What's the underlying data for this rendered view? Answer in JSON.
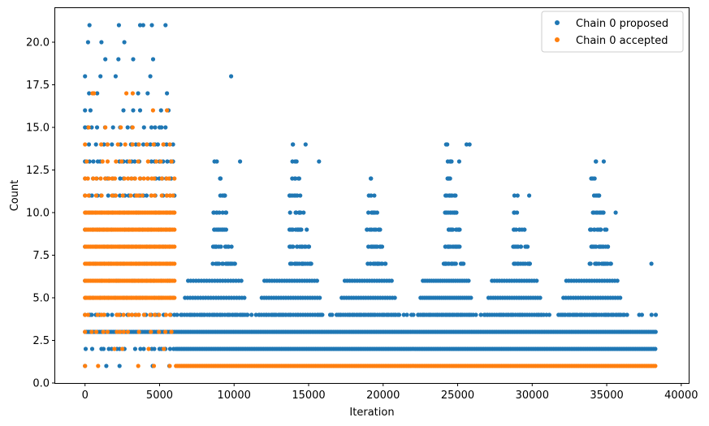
{
  "chart_data": {
    "type": "scatter",
    "title": "",
    "xlabel": "Iteration",
    "ylabel": "Count",
    "xlim": [
      -2000,
      40500
    ],
    "ylim": [
      0,
      22
    ],
    "xticks": [
      0,
      5000,
      10000,
      15000,
      20000,
      25000,
      30000,
      35000,
      40000
    ],
    "xtick_labels": [
      "0",
      "5000",
      "10000",
      "15000",
      "20000",
      "25000",
      "30000",
      "35000",
      "40000"
    ],
    "yticks": [
      0,
      2.5,
      5,
      7.5,
      10,
      12.5,
      15,
      17.5,
      20
    ],
    "ytick_labels": [
      "0.0",
      "2.5",
      "5.0",
      "7.5",
      "10.0",
      "12.5",
      "15.0",
      "17.5",
      "20.0"
    ],
    "grid": false,
    "legend_position": "top-right",
    "series": [
      {
        "name": "Chain 0 proposed",
        "color": "#1f77b4",
        "bands": [
          {
            "y": 1,
            "x": [
              0,
              6000
            ],
            "density": "sparse"
          },
          {
            "y": 2,
            "x": [
              6100,
              38300
            ],
            "density": "continuous"
          },
          {
            "y": 2,
            "x": [
              0,
              6000
            ],
            "density": "dense"
          },
          {
            "y": 3,
            "x": [
              0,
              38300
            ],
            "density": "continuous"
          },
          {
            "y": 4,
            "x": [
              0,
              38300
            ],
            "density": "dense"
          },
          {
            "y": 5,
            "x": [
              0,
              6000
            ],
            "density": "dense"
          },
          {
            "y": 6,
            "x": [
              0,
              6000
            ],
            "density": "dense"
          },
          {
            "y": 7,
            "x": [
              0,
              6000
            ],
            "density": "dense"
          },
          {
            "y": 8,
            "x": [
              0,
              6000
            ],
            "density": "dense"
          },
          {
            "y": 9,
            "x": [
              0,
              6000
            ],
            "density": "dense"
          },
          {
            "y": 10,
            "x": [
              0,
              6000
            ],
            "density": "dense"
          },
          {
            "y": 11,
            "x": [
              0,
              6000
            ],
            "density": "dense"
          },
          {
            "y": 12,
            "x": [
              0,
              6000
            ],
            "density": "dense"
          },
          {
            "y": 13,
            "x": [
              0,
              6000
            ],
            "density": "dense"
          },
          {
            "y": 14,
            "x": [
              0,
              6000
            ],
            "density": "dense"
          },
          {
            "y": 15,
            "x": [
              0,
              6000
            ],
            "density": "dense"
          },
          {
            "y": 16,
            "x": [
              0,
              5800
            ],
            "density": "medium"
          },
          {
            "y": 17,
            "x": [
              0,
              5500
            ],
            "density": "sparse"
          },
          {
            "y": 18,
            "x": [
              0,
              5400
            ],
            "density": "sparse"
          },
          {
            "y": 19,
            "x": [
              0,
              5500
            ],
            "density": "sparse"
          },
          {
            "y": 20,
            "x": [
              200,
              3900
            ],
            "density": "sparse"
          },
          {
            "y": 21,
            "x": [
              200,
              5400
            ],
            "density": "sparse"
          }
        ],
        "clusters": [
          {
            "center": 8700,
            "half_width": 2400,
            "max_count": 13
          },
          {
            "center": 13800,
            "half_width": 2300,
            "max_count": 14
          },
          {
            "center": 19000,
            "half_width": 2200,
            "max_count": 12
          },
          {
            "center": 24200,
            "half_width": 2000,
            "max_count": 14
          },
          {
            "center": 28800,
            "half_width": 2200,
            "max_count": 11
          },
          {
            "center": 34000,
            "half_width": 2300,
            "max_count": 13
          }
        ],
        "points": [
          {
            "x": 300,
            "y": 21
          },
          {
            "x": 3900,
            "y": 21
          },
          {
            "x": 5400,
            "y": 21
          },
          {
            "x": 9800,
            "y": 18
          },
          {
            "x": 14800,
            "y": 14
          },
          {
            "x": 25600,
            "y": 14
          },
          {
            "x": 25800,
            "y": 14
          },
          {
            "x": 34800,
            "y": 13
          },
          {
            "x": 10400,
            "y": 13
          },
          {
            "x": 15700,
            "y": 13
          },
          {
            "x": 24500,
            "y": 13
          },
          {
            "x": 25100,
            "y": 13
          },
          {
            "x": 29800,
            "y": 11
          },
          {
            "x": 35600,
            "y": 10
          },
          {
            "x": 38000,
            "y": 7
          }
        ]
      },
      {
        "name": "Chain 0 accepted",
        "color": "#ff7f0e",
        "bands": [
          {
            "y": 1,
            "x": [
              6100,
              38300
            ],
            "density": "continuous"
          },
          {
            "y": 1,
            "x": [
              0,
              6000
            ],
            "density": "sparse"
          },
          {
            "y": 2,
            "x": [
              0,
              6000
            ],
            "density": "medium"
          },
          {
            "y": 3,
            "x": [
              0,
              6000
            ],
            "density": "dense"
          },
          {
            "y": 4,
            "x": [
              0,
              6000
            ],
            "density": "dense"
          },
          {
            "y": 5,
            "x": [
              0,
              6000
            ],
            "density": "continuous"
          },
          {
            "y": 6,
            "x": [
              0,
              6000
            ],
            "density": "continuous"
          },
          {
            "y": 7,
            "x": [
              0,
              6000
            ],
            "density": "continuous"
          },
          {
            "y": 8,
            "x": [
              0,
              6000
            ],
            "density": "continuous"
          },
          {
            "y": 9,
            "x": [
              0,
              6000
            ],
            "density": "continuous"
          },
          {
            "y": 10,
            "x": [
              0,
              6000
            ],
            "density": "continuous"
          },
          {
            "y": 11,
            "x": [
              0,
              6000
            ],
            "density": "dense"
          },
          {
            "y": 12,
            "x": [
              0,
              6000
            ],
            "density": "dense"
          },
          {
            "y": 13,
            "x": [
              0,
              5800
            ],
            "density": "medium"
          },
          {
            "y": 14,
            "x": [
              0,
              5800
            ],
            "density": "medium"
          },
          {
            "y": 15,
            "x": [
              0,
              5500
            ],
            "density": "sparse"
          },
          {
            "y": 16,
            "x": [
              3600,
              5600
            ],
            "density": "sparse"
          },
          {
            "y": 17,
            "x": [
              500,
              3200
            ],
            "density": "sparse"
          }
        ],
        "points": [
          {
            "x": 5500,
            "y": 16
          },
          {
            "x": 600,
            "y": 17
          },
          {
            "x": 3200,
            "y": 17
          }
        ]
      }
    ]
  }
}
